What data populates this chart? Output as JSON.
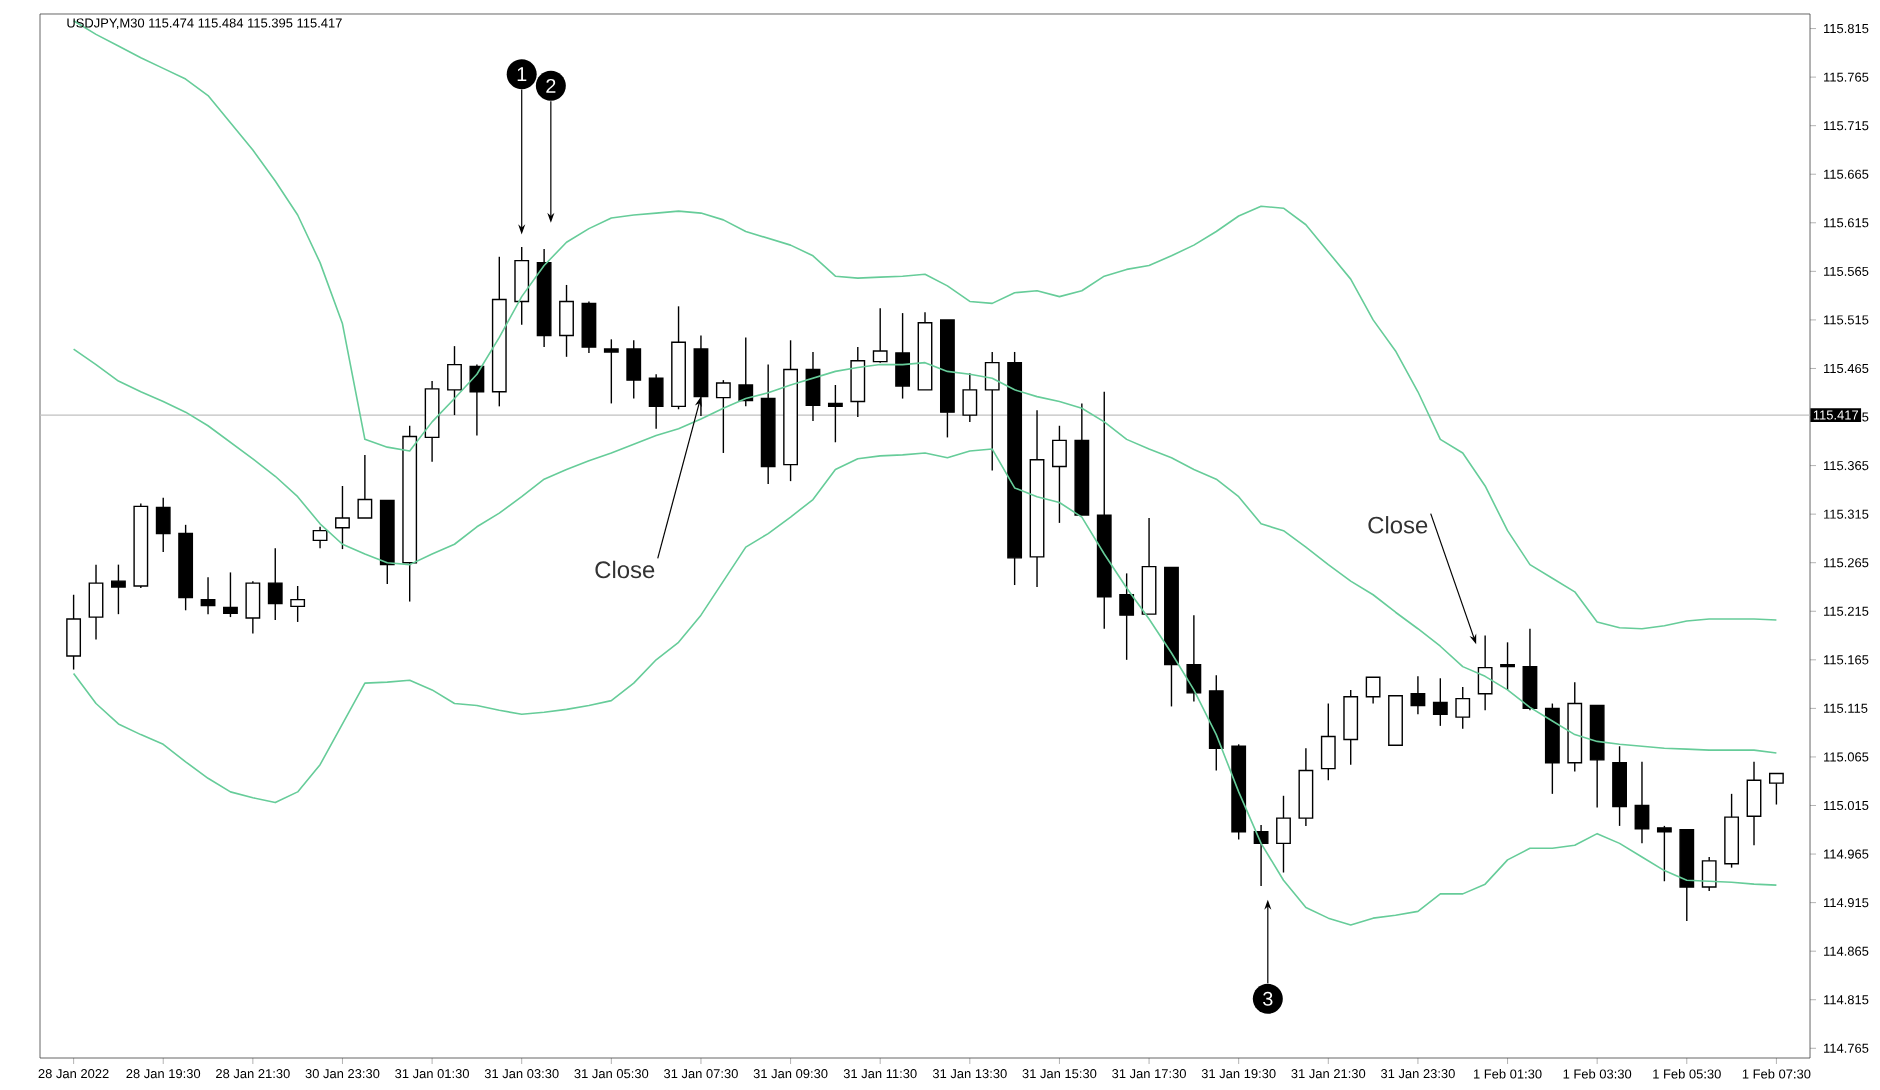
{
  "chart_data": {
    "type": "candlestick",
    "title": "USDJPY,M30 115.474 115.484 115.395 115.417",
    "categories": [
      "28 Jan 2022",
      null,
      null,
      null,
      "28 Jan 19:30",
      null,
      null,
      null,
      "28 Jan 21:30",
      null,
      null,
      null,
      "30 Jan 23:30",
      null,
      null,
      null,
      "31 Jan 01:30",
      null,
      null,
      null,
      "31 Jan 03:30",
      null,
      null,
      null,
      "31 Jan 05:30",
      null,
      null,
      null,
      "31 Jan 07:30",
      null,
      null,
      null,
      "31 Jan 09:30",
      null,
      null,
      null,
      "31 Jan 11:30",
      null,
      null,
      null,
      "31 Jan 13:30",
      null,
      null,
      null,
      "31 Jan 15:30",
      null,
      null,
      null,
      "31 Jan 17:30",
      null,
      null,
      null,
      "31 Jan 19:30",
      null,
      null,
      null,
      "31 Jan 21:30",
      null,
      null,
      null,
      "31 Jan 23:30",
      null,
      null,
      null,
      "1 Feb 01:30",
      null,
      null,
      null,
      "1 Feb 03:30",
      null,
      null,
      null,
      "1 Feb 05:30",
      null,
      null,
      null,
      "1 Feb 07:30"
    ],
    "ohlc": [
      [
        115.169,
        115.232,
        115.155,
        115.207
      ],
      [
        115.209,
        115.263,
        115.186,
        115.244
      ],
      [
        115.246,
        115.263,
        115.212,
        115.24
      ],
      [
        115.241,
        115.326,
        115.239,
        115.323
      ],
      [
        115.322,
        115.332,
        115.276,
        115.295
      ],
      [
        115.295,
        115.304,
        115.216,
        115.229
      ],
      [
        115.227,
        115.25,
        115.212,
        115.221
      ],
      [
        115.219,
        115.255,
        115.209,
        115.213
      ],
      [
        115.208,
        115.246,
        115.192,
        115.244
      ],
      [
        115.244,
        115.28,
        115.206,
        115.223
      ],
      [
        115.22,
        115.241,
        115.204,
        115.227
      ],
      [
        115.288,
        115.302,
        115.28,
        115.298
      ],
      [
        115.301,
        115.344,
        115.279,
        115.311
      ],
      [
        115.311,
        115.376,
        115.311,
        115.33
      ],
      [
        115.329,
        115.329,
        115.243,
        115.263
      ],
      [
        115.265,
        115.406,
        115.225,
        115.395
      ],
      [
        115.394,
        115.452,
        115.369,
        115.444
      ],
      [
        115.443,
        115.488,
        115.417,
        115.469
      ],
      [
        115.467,
        115.469,
        115.396,
        115.441
      ],
      [
        115.441,
        115.58,
        115.426,
        115.536
      ],
      [
        115.534,
        115.59,
        115.51,
        115.576
      ],
      [
        115.574,
        115.588,
        115.487,
        115.499
      ],
      [
        115.499,
        115.551,
        115.477,
        115.534
      ],
      [
        115.532,
        115.534,
        115.481,
        115.487
      ],
      [
        115.485,
        115.495,
        115.429,
        115.482
      ],
      [
        115.485,
        115.494,
        115.434,
        115.453
      ],
      [
        115.455,
        115.459,
        115.403,
        115.426
      ],
      [
        115.426,
        115.529,
        115.423,
        115.492
      ],
      [
        115.485,
        115.499,
        115.416,
        115.436
      ],
      [
        115.435,
        115.453,
        115.378,
        115.45
      ],
      [
        115.448,
        115.497,
        115.426,
        115.432
      ],
      [
        115.434,
        115.469,
        115.346,
        115.364
      ],
      [
        115.366,
        115.494,
        115.349,
        115.464
      ],
      [
        115.464,
        115.482,
        115.411,
        115.427
      ],
      [
        115.429,
        115.448,
        115.389,
        115.426
      ],
      [
        115.431,
        115.487,
        115.415,
        115.473
      ],
      [
        115.472,
        115.527,
        115.471,
        115.483
      ],
      [
        115.481,
        115.522,
        115.434,
        115.447
      ],
      [
        115.443,
        115.523,
        115.443,
        115.512
      ],
      [
        115.515,
        115.515,
        115.394,
        115.42
      ],
      [
        115.417,
        115.46,
        115.41,
        115.443
      ],
      [
        115.443,
        115.482,
        115.36,
        115.471
      ],
      [
        115.471,
        115.482,
        115.242,
        115.27
      ],
      [
        115.271,
        115.422,
        115.24,
        115.371
      ],
      [
        115.364,
        115.406,
        115.306,
        115.391
      ],
      [
        115.391,
        115.429,
        115.314,
        115.314
      ],
      [
        115.314,
        115.441,
        115.197,
        115.23
      ],
      [
        115.232,
        115.254,
        115.165,
        115.211
      ],
      [
        115.212,
        115.311,
        115.212,
        115.261
      ],
      [
        115.26,
        115.26,
        115.117,
        115.16
      ],
      [
        115.16,
        115.211,
        115.122,
        115.131
      ],
      [
        115.133,
        115.149,
        115.051,
        115.074
      ],
      [
        115.076,
        115.078,
        114.98,
        114.988
      ],
      [
        114.988,
        114.995,
        114.932,
        114.976
      ],
      [
        114.976,
        115.025,
        114.946,
        115.002
      ],
      [
        115.002,
        115.074,
        114.994,
        115.051
      ],
      [
        115.053,
        115.12,
        115.041,
        115.086
      ],
      [
        115.083,
        115.134,
        115.057,
        115.127
      ],
      [
        115.127,
        115.147,
        115.12,
        115.147
      ],
      [
        115.077,
        115.128,
        115.077,
        115.128
      ],
      [
        115.13,
        115.148,
        115.109,
        115.118
      ],
      [
        115.121,
        115.146,
        115.097,
        115.109
      ],
      [
        115.106,
        115.137,
        115.094,
        115.125
      ],
      [
        115.13,
        115.19,
        115.113,
        115.157
      ],
      [
        115.16,
        115.183,
        115.134,
        115.158
      ],
      [
        115.158,
        115.197,
        115.113,
        115.115
      ],
      [
        115.115,
        115.12,
        115.027,
        115.059
      ],
      [
        115.059,
        115.142,
        115.05,
        115.12
      ],
      [
        115.118,
        115.118,
        115.013,
        115.062
      ],
      [
        115.059,
        115.076,
        114.994,
        115.014
      ],
      [
        115.015,
        115.06,
        114.976,
        114.991
      ],
      [
        114.992,
        114.994,
        114.937,
        114.988
      ],
      [
        114.99,
        114.99,
        114.896,
        114.931
      ],
      [
        114.931,
        114.962,
        114.927,
        114.958
      ],
      [
        114.955,
        115.027,
        114.951,
        115.003
      ],
      [
        115.004,
        115.06,
        114.974,
        115.041
      ],
      [
        115.038,
        115.048,
        115.016,
        115.048
      ]
    ],
    "series": [
      {
        "type": "line",
        "color": "#66cc99",
        "values": [
          115.823,
          115.809,
          115.797,
          115.785,
          115.774,
          115.763,
          115.746,
          115.718,
          115.69,
          115.658,
          115.623,
          115.574,
          115.511,
          115.392,
          115.384,
          115.38,
          115.41,
          115.434,
          115.459,
          115.497,
          115.539,
          115.571,
          115.595,
          115.609,
          115.62,
          115.623,
          115.625,
          115.627,
          115.625,
          115.618,
          115.606,
          115.599,
          115.592,
          115.581,
          115.56,
          115.558,
          115.559,
          115.56,
          115.562,
          115.55,
          115.534,
          115.532,
          115.543,
          115.545,
          115.539,
          115.545,
          115.56,
          115.567,
          115.571,
          115.581,
          115.592,
          115.606,
          115.622,
          115.632,
          115.63,
          115.613,
          115.585,
          115.557,
          115.515,
          115.483,
          115.441,
          115.392,
          115.378,
          115.344,
          115.298,
          115.263,
          115.249,
          115.235,
          115.204,
          115.198,
          115.197,
          115.2,
          115.205,
          115.207,
          115.207,
          115.207,
          115.206
        ]
      },
      {
        "type": "line",
        "color": "#66cc99",
        "values": [
          115.485,
          115.469,
          115.452,
          115.441,
          115.431,
          115.42,
          115.406,
          115.389,
          115.372,
          115.354,
          115.333,
          115.305,
          115.284,
          115.274,
          115.265,
          115.263,
          115.274,
          115.284,
          115.302,
          115.316,
          115.333,
          115.351,
          115.361,
          115.37,
          115.378,
          115.387,
          115.396,
          115.403,
          115.413,
          115.424,
          115.434,
          115.44,
          115.448,
          115.455,
          115.462,
          115.466,
          115.469,
          115.469,
          115.471,
          115.462,
          115.459,
          115.455,
          115.443,
          115.436,
          115.431,
          115.424,
          115.41,
          115.392,
          115.382,
          115.373,
          115.361,
          115.351,
          115.333,
          115.305,
          115.298,
          115.281,
          115.263,
          115.246,
          115.232,
          115.214,
          115.197,
          115.179,
          115.158,
          115.148,
          115.134,
          115.116,
          115.102,
          115.088,
          115.081,
          115.078,
          115.076,
          115.074,
          115.073,
          115.072,
          115.072,
          115.072,
          115.069
        ]
      },
      {
        "type": "line",
        "color": "#66cc99",
        "values": [
          115.151,
          115.12,
          115.099,
          115.088,
          115.078,
          115.06,
          115.043,
          115.029,
          115.023,
          115.018,
          115.029,
          115.057,
          115.099,
          115.141,
          115.142,
          115.144,
          115.134,
          115.12,
          115.118,
          115.113,
          115.109,
          115.111,
          115.114,
          115.118,
          115.123,
          115.141,
          115.165,
          115.183,
          115.211,
          115.246,
          115.281,
          115.295,
          115.312,
          115.33,
          115.361,
          115.372,
          115.375,
          115.376,
          115.378,
          115.373,
          115.38,
          115.382,
          115.342,
          115.333,
          115.327,
          115.312,
          115.274,
          115.239,
          115.207,
          115.172,
          115.134,
          115.088,
          115.029,
          114.976,
          114.938,
          114.91,
          114.899,
          114.892,
          114.899,
          114.902,
          114.906,
          114.924,
          114.924,
          114.934,
          114.959,
          114.971,
          114.971,
          114.974,
          114.986,
          114.976,
          114.962,
          114.948,
          114.938,
          114.937,
          114.936,
          114.934,
          114.933
        ]
      }
    ],
    "ylim": [
      114.755,
      115.83
    ],
    "yticks": [
      115.815,
      115.765,
      115.715,
      115.665,
      115.615,
      115.565,
      115.515,
      115.465,
      115.415,
      115.365,
      115.315,
      115.265,
      115.215,
      115.165,
      115.115,
      115.065,
      115.015,
      114.965,
      114.915,
      114.865,
      114.815,
      114.765
    ],
    "ref_lines": [
      {
        "axis": "y",
        "value": 115.417,
        "label": "115.417",
        "color": "#c0c0c0"
      }
    ],
    "annotations": [
      {
        "text": "Close",
        "x": "31 Jan 07:30",
        "y": 115.436
      },
      "Close",
      "1",
      "2",
      "3"
    ]
  }
}
